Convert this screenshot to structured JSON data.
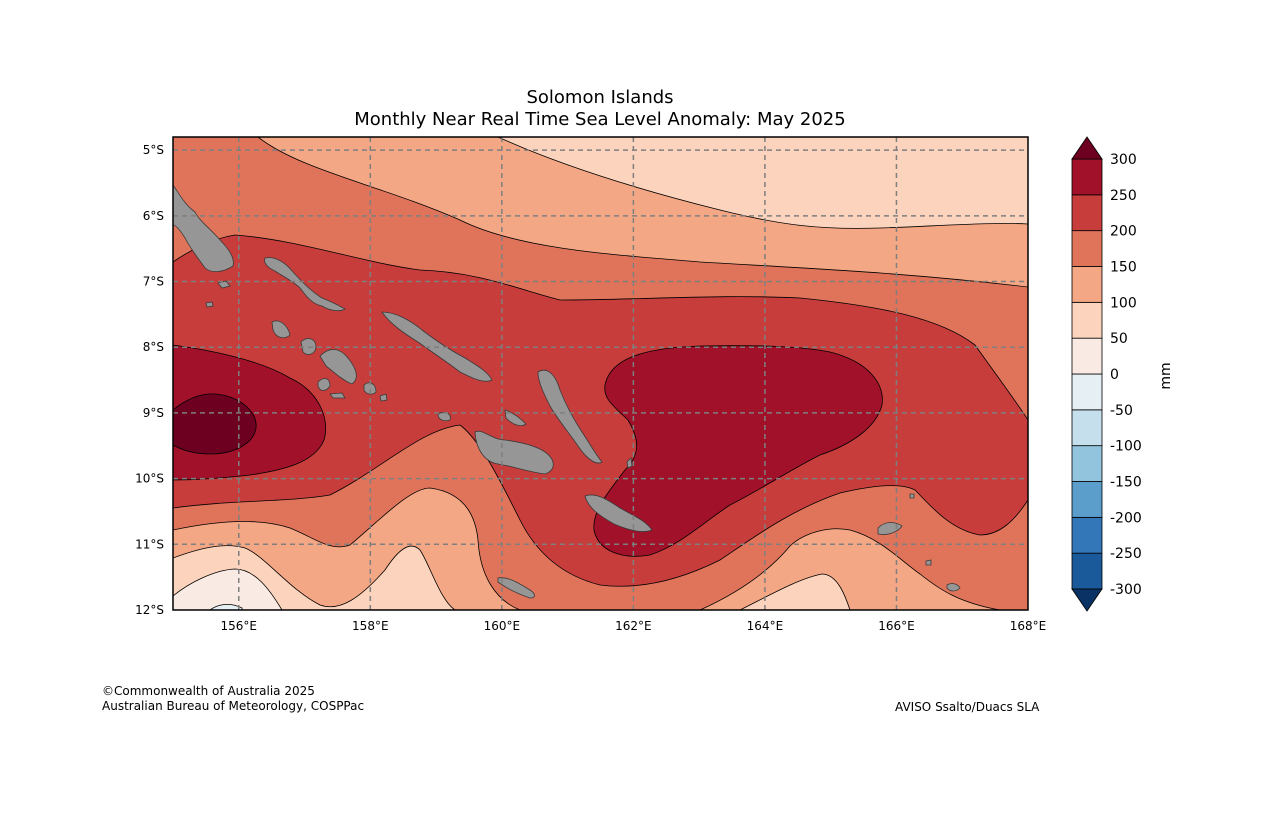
{
  "title": {
    "line1": "Solomon Islands",
    "line2": "Monthly Near Real Time Sea Level Anomaly: May 2025"
  },
  "map": {
    "extent": {
      "lon": [
        155,
        168
      ],
      "lat": [
        -12,
        -4.8
      ]
    },
    "lon_ticks": [
      {
        "value": 156,
        "label": "156°E"
      },
      {
        "value": 158,
        "label": "158°E"
      },
      {
        "value": 160,
        "label": "160°E"
      },
      {
        "value": 162,
        "label": "162°E"
      },
      {
        "value": 164,
        "label": "164°E"
      },
      {
        "value": 166,
        "label": "166°E"
      },
      {
        "value": 168,
        "label": "168°E"
      }
    ],
    "lat_ticks": [
      {
        "value": -5,
        "label": "5°S"
      },
      {
        "value": -6,
        "label": "6°S"
      },
      {
        "value": -7,
        "label": "7°S"
      },
      {
        "value": -8,
        "label": "8°S"
      },
      {
        "value": -9,
        "label": "9°S"
      },
      {
        "value": -10,
        "label": "10°S"
      },
      {
        "value": -11,
        "label": "11°S"
      },
      {
        "value": -12,
        "label": "12°S"
      }
    ],
    "grid": true,
    "land_color": "#969696"
  },
  "colorbar": {
    "unit": "mm",
    "levels": [
      "-300",
      "-250",
      "-200",
      "-150",
      "-100",
      "-50",
      "0",
      "50",
      "100",
      "150",
      "200",
      "250",
      "300"
    ],
    "colors": [
      "#1b5a9a",
      "#3477b8",
      "#5b9ecb",
      "#93c4de",
      "#c6dfed",
      "#e6eff4",
      "#f9ebe3",
      "#fcd3bc",
      "#f4a784",
      "#e0745b",
      "#c63d3b",
      "#a11129"
    ],
    "under_color": "#0b3264",
    "over_color": "#6d0021"
  },
  "credits": {
    "copyright": "©Commonwealth of Australia 2025",
    "agency": "Australian Bureau of Meteorology, COSPPac",
    "source": "AVISO Ssalto/Duacs SLA"
  }
}
